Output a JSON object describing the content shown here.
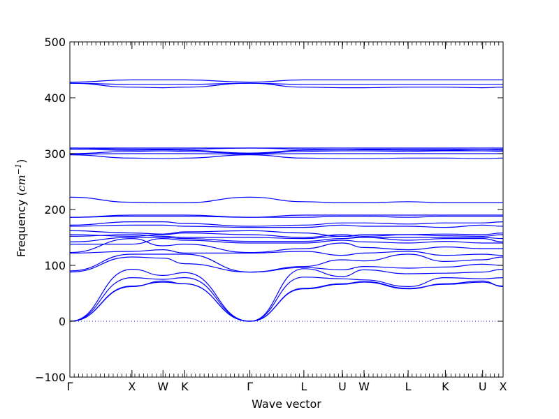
{
  "chart_data": {
    "type": "line",
    "title": "",
    "xlabel": "Wave vector",
    "ylabel_prefix": "Frequency (",
    "ylabel_unit": "cm",
    "ylabel_exp": "−1",
    "ylabel_suffix": ")",
    "ylim": [
      -100,
      500
    ],
    "yticks": [
      -100,
      0,
      100,
      200,
      300,
      400,
      500
    ],
    "ytick_labels": [
      "−100",
      "0",
      "100",
      "200",
      "300",
      "400",
      "500"
    ],
    "xlim": [
      0,
      6.98
    ],
    "xticks": [
      {
        "label": "Γ",
        "x": 0.0
      },
      {
        "label": "X",
        "x": 1.0
      },
      {
        "label": "W",
        "x": 1.5
      },
      {
        "label": "K",
        "x": 1.85
      },
      {
        "label": "Γ",
        "x": 2.9
      },
      {
        "label": "L",
        "x": 3.77
      },
      {
        "label": "U",
        "x": 4.39
      },
      {
        "label": "W",
        "x": 4.74
      },
      {
        "label": "L",
        "x": 5.45
      },
      {
        "label": "K",
        "x": 6.05
      },
      {
        "label": "U",
        "x": 6.65
      },
      {
        "label": "X",
        "x": 6.98
      }
    ],
    "grid": false,
    "zero_line": true,
    "line_color": "#0000ff",
    "series": [
      {
        "x": [
          0,
          1.0,
          1.5,
          1.85,
          2.9,
          3.77,
          4.39,
          4.74,
          5.45,
          6.05,
          6.65,
          6.98
        ],
        "y": [
          0,
          62,
          72,
          67,
          0,
          58,
          66,
          70,
          58,
          67,
          72,
          62
        ]
      },
      {
        "x": [
          0,
          1.0,
          1.5,
          1.85,
          2.9,
          3.77,
          4.39,
          4.74,
          5.45,
          6.05,
          6.65,
          6.98
        ],
        "y": [
          0,
          63,
          70,
          67,
          0,
          59,
          67,
          71,
          59,
          66,
          70,
          63
        ]
      },
      {
        "x": [
          0,
          1.0,
          1.5,
          1.85,
          2.9,
          3.77,
          4.39,
          4.74,
          5.45,
          6.05,
          6.65,
          6.98
        ],
        "y": [
          0,
          78,
          75,
          78,
          0,
          79,
          76,
          74,
          62,
          78,
          76,
          78
        ]
      },
      {
        "x": [
          0,
          1.0,
          1.5,
          1.85,
          2.9,
          3.77,
          4.39,
          4.74,
          5.45,
          6.05,
          6.65,
          6.98
        ],
        "y": [
          0,
          93,
          82,
          87,
          0,
          94,
          80,
          92,
          85,
          86,
          88,
          93
        ]
      },
      {
        "x": [
          0,
          1.0,
          1.5,
          1.85,
          2.9,
          3.77,
          4.39,
          4.74,
          5.45,
          6.05,
          6.65,
          6.98
        ],
        "y": [
          88,
          115,
          113,
          103,
          88,
          96,
          92,
          98,
          95,
          97,
          102,
          100
        ]
      },
      {
        "x": [
          0,
          1.0,
          1.5,
          1.85,
          2.9,
          3.77,
          4.39,
          4.74,
          5.45,
          6.05,
          6.65,
          6.98
        ],
        "y": [
          90,
          120,
          120,
          120,
          88,
          98,
          110,
          108,
          120,
          107,
          110,
          115
        ]
      },
      {
        "x": [
          0,
          1.0,
          1.5,
          1.85,
          2.9,
          3.77,
          4.39,
          4.74,
          5.45,
          6.05,
          6.65,
          6.98
        ],
        "y": [
          122,
          125,
          128,
          122,
          122,
          125,
          118,
          122,
          125,
          118,
          120,
          118
        ]
      },
      {
        "x": [
          0,
          1.0,
          1.5,
          1.85,
          2.9,
          3.77,
          4.39,
          4.74,
          5.45,
          6.05,
          6.65,
          6.98
        ],
        "y": [
          123,
          148,
          135,
          138,
          123,
          130,
          140,
          132,
          128,
          133,
          130,
          130
        ]
      },
      {
        "x": [
          0,
          1.0,
          1.5,
          1.85,
          2.9,
          3.77,
          4.39,
          4.74,
          5.45,
          6.05,
          6.65,
          6.98
        ],
        "y": [
          138,
          138,
          148,
          145,
          140,
          140,
          145,
          142,
          140,
          143,
          140,
          140
        ]
      },
      {
        "x": [
          0,
          1.0,
          1.5,
          1.85,
          2.9,
          3.77,
          4.39,
          4.74,
          5.45,
          6.05,
          6.65,
          6.98
        ],
        "y": [
          142,
          150,
          150,
          148,
          143,
          143,
          148,
          150,
          145,
          148,
          148,
          142
        ]
      },
      {
        "x": [
          0,
          1.0,
          1.5,
          1.85,
          2.9,
          3.77,
          4.39,
          4.74,
          5.45,
          6.05,
          6.65,
          6.98
        ],
        "y": [
          152,
          155,
          152,
          150,
          150,
          148,
          152,
          150,
          150,
          150,
          150,
          148
        ]
      },
      {
        "x": [
          0,
          1.0,
          1.5,
          1.85,
          2.9,
          3.77,
          4.39,
          4.74,
          5.45,
          6.05,
          6.65,
          6.98
        ],
        "y": [
          155,
          152,
          155,
          158,
          155,
          150,
          155,
          152,
          155,
          153,
          152,
          155
        ]
      },
      {
        "x": [
          0,
          1.0,
          1.5,
          1.85,
          2.9,
          3.77,
          4.39,
          4.74,
          5.45,
          6.05,
          6.65,
          6.98
        ],
        "y": [
          162,
          158,
          156,
          160,
          162,
          158,
          152,
          155,
          155,
          156,
          155,
          158
        ]
      },
      {
        "x": [
          0,
          1.0,
          1.5,
          1.85,
          2.9,
          3.77,
          4.39,
          4.74,
          5.45,
          6.05,
          6.65,
          6.98
        ],
        "y": [
          170,
          172,
          172,
          170,
          168,
          168,
          172,
          170,
          170,
          168,
          172,
          170
        ]
      },
      {
        "x": [
          0,
          1.0,
          1.5,
          1.85,
          2.9,
          3.77,
          4.39,
          4.74,
          5.45,
          6.05,
          6.65,
          6.98
        ],
        "y": [
          172,
          178,
          178,
          175,
          170,
          172,
          176,
          176,
          174,
          176,
          176,
          178
        ]
      },
      {
        "x": [
          0,
          1.0,
          1.5,
          1.85,
          2.9,
          3.77,
          4.39,
          4.74,
          5.45,
          6.05,
          6.65,
          6.98
        ],
        "y": [
          186,
          188,
          188,
          188,
          186,
          186,
          188,
          188,
          186,
          188,
          188,
          188
        ]
      },
      {
        "x": [
          0,
          1.0,
          1.5,
          1.85,
          2.9,
          3.77,
          4.39,
          4.74,
          5.45,
          6.05,
          6.65,
          6.98
        ],
        "y": [
          186,
          190,
          190,
          190,
          186,
          190,
          190,
          190,
          190,
          190,
          190,
          190
        ]
      },
      {
        "x": [
          0,
          1.0,
          1.5,
          1.85,
          2.9,
          3.77,
          4.39,
          4.74,
          5.45,
          6.05,
          6.65,
          6.98
        ],
        "y": [
          222,
          213,
          212,
          212,
          222,
          214,
          212,
          212,
          214,
          212,
          212,
          212
        ]
      },
      {
        "x": [
          0,
          1.0,
          1.5,
          1.85,
          2.9,
          3.77,
          4.39,
          4.74,
          5.45,
          6.05,
          6.65,
          6.98
        ],
        "y": [
          298,
          292,
          291,
          292,
          298,
          292,
          291,
          291,
          292,
          292,
          291,
          292
        ]
      },
      {
        "x": [
          0,
          1.0,
          1.5,
          1.85,
          2.9,
          3.77,
          4.39,
          4.74,
          5.45,
          6.05,
          6.65,
          6.98
        ],
        "y": [
          299,
          300,
          300,
          300,
          299,
          300,
          300,
          300,
          300,
          300,
          300,
          300
        ]
      },
      {
        "x": [
          0,
          1.0,
          1.5,
          1.85,
          2.9,
          3.77,
          4.39,
          4.74,
          5.45,
          6.05,
          6.65,
          6.98
        ],
        "y": [
          300,
          304,
          305,
          304,
          300,
          304,
          305,
          305,
          304,
          305,
          305,
          304
        ]
      },
      {
        "x": [
          0,
          1.0,
          1.5,
          1.85,
          2.9,
          3.77,
          4.39,
          4.74,
          5.45,
          6.05,
          6.65,
          6.98
        ],
        "y": [
          308,
          306,
          307,
          306,
          301,
          306,
          307,
          307,
          306,
          306,
          307,
          306
        ]
      },
      {
        "x": [
          0,
          1.0,
          1.5,
          1.85,
          2.9,
          3.77,
          4.39,
          4.74,
          5.45,
          6.05,
          6.65,
          6.98
        ],
        "y": [
          310,
          308,
          308,
          308,
          310,
          308,
          307,
          308,
          308,
          308,
          307,
          308
        ]
      },
      {
        "x": [
          0,
          1.0,
          1.5,
          1.85,
          2.9,
          3.77,
          4.39,
          4.74,
          5.45,
          6.05,
          6.65,
          6.98
        ],
        "y": [
          310,
          310,
          310,
          310,
          310,
          310,
          310,
          310,
          310,
          310,
          310,
          310
        ]
      },
      {
        "x": [
          0,
          1.0,
          1.5,
          1.85,
          2.9,
          3.77,
          4.39,
          4.74,
          5.45,
          6.05,
          6.65,
          6.98
        ],
        "y": [
          426,
          419,
          418,
          419,
          426,
          419,
          418,
          418,
          419,
          419,
          418,
          419
        ]
      },
      {
        "x": [
          0,
          1.0,
          1.5,
          1.85,
          2.9,
          3.77,
          4.39,
          4.74,
          5.45,
          6.05,
          6.65,
          6.98
        ],
        "y": [
          426,
          424,
          424,
          424,
          426,
          424,
          424,
          424,
          424,
          424,
          424,
          424
        ]
      },
      {
        "x": [
          0,
          1.0,
          1.5,
          1.85,
          2.9,
          3.77,
          4.39,
          4.74,
          5.45,
          6.05,
          6.65,
          6.98
        ],
        "y": [
          428,
          432,
          432,
          432,
          428,
          432,
          432,
          432,
          432,
          432,
          432,
          432
        ]
      }
    ]
  }
}
